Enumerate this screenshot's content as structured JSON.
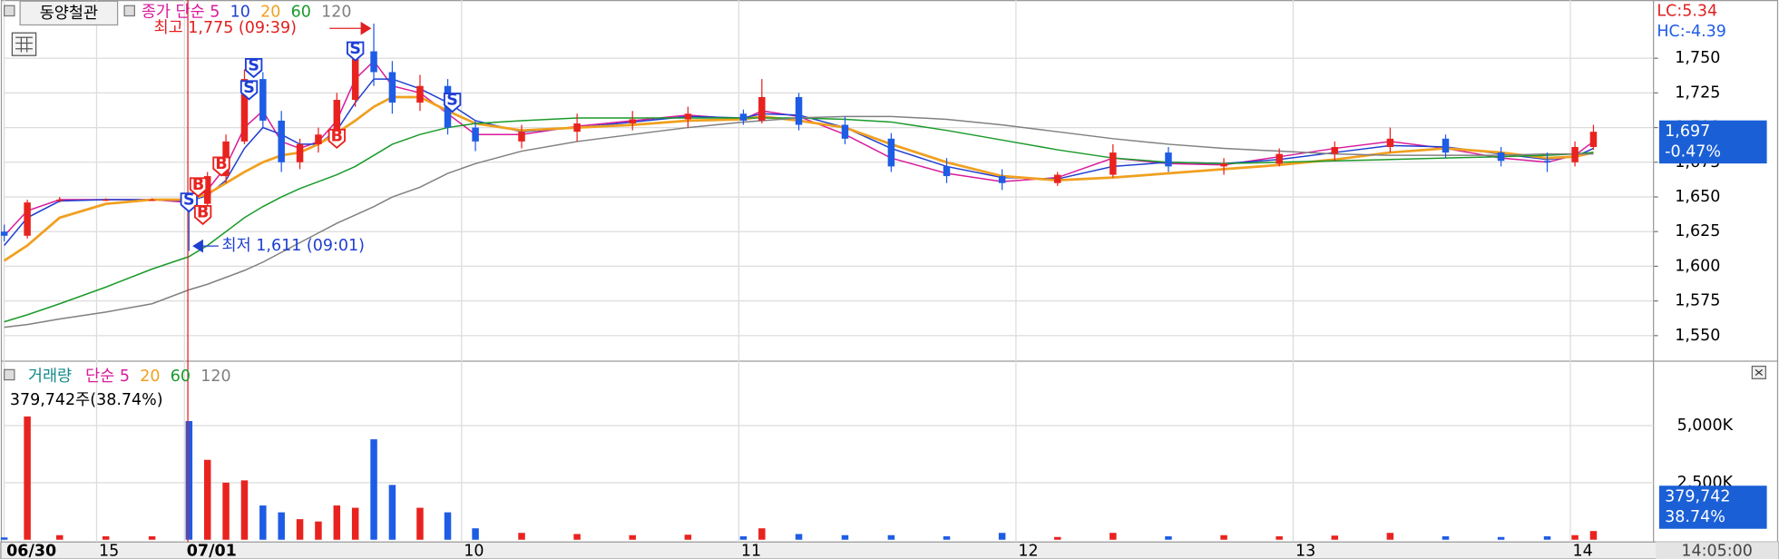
{
  "chart_data": {
    "type": "candlestick",
    "title": "동양철관",
    "x": [
      0,
      5,
      12,
      22,
      32,
      40,
      44,
      48,
      52,
      56,
      60,
      64,
      68,
      72,
      76,
      80,
      84,
      90,
      96,
      102,
      112,
      124,
      136,
      148,
      160,
      164,
      172,
      182,
      192,
      204,
      216,
      228,
      240,
      252,
      264,
      276,
      288,
      300,
      312,
      324,
      334,
      340,
      344
    ],
    "open": [
      1625,
      1622,
      1648,
      1648,
      1648,
      1648,
      1645,
      1665,
      1690,
      1735,
      1705,
      1675,
      1688,
      1695,
      1720,
      1755,
      1740,
      1718,
      1730,
      1700,
      1690,
      1697,
      1703,
      1706,
      1710,
      1705,
      1722,
      1702,
      1692,
      1672,
      1665,
      1660,
      1666,
      1682,
      1672,
      1674,
      1681,
      1686,
      1692,
      1682,
      1676,
      1675,
      1686
    ],
    "high": [
      1630,
      1648,
      1650,
      1649,
      1649,
      1652,
      1668,
      1695,
      1742,
      1740,
      1712,
      1692,
      1700,
      1725,
      1760,
      1775,
      1748,
      1738,
      1735,
      1705,
      1702,
      1710,
      1712,
      1715,
      1713,
      1735,
      1725,
      1708,
      1696,
      1678,
      1670,
      1668,
      1688,
      1686,
      1678,
      1685,
      1690,
      1700,
      1695,
      1686,
      1682,
      1690,
      1702
    ],
    "low": [
      1618,
      1620,
      1646,
      1647,
      1647,
      1611,
      1640,
      1660,
      1688,
      1700,
      1668,
      1670,
      1682,
      1690,
      1715,
      1730,
      1710,
      1712,
      1695,
      1683,
      1685,
      1690,
      1698,
      1700,
      1702,
      1703,
      1698,
      1688,
      1668,
      1660,
      1655,
      1658,
      1664,
      1668,
      1666,
      1672,
      1676,
      1682,
      1678,
      1672,
      1668,
      1672,
      1684
    ],
    "close": [
      1622,
      1646,
      1648,
      1648,
      1648,
      1645,
      1665,
      1690,
      1735,
      1705,
      1675,
      1688,
      1695,
      1720,
      1755,
      1740,
      1718,
      1730,
      1700,
      1690,
      1697,
      1703,
      1706,
      1710,
      1705,
      1722,
      1702,
      1692,
      1672,
      1665,
      1660,
      1666,
      1682,
      1672,
      1674,
      1681,
      1686,
      1692,
      1682,
      1676,
      1675,
      1686,
      1697
    ],
    "up_color": "#e8231f",
    "down_color": "#1e5ce6",
    "series": [
      {
        "name": "종가 단순 5",
        "color": "#d81b9c",
        "values": [
          1622,
          1640,
          1648,
          1648,
          1648,
          1646,
          1655,
          1672,
          1700,
          1712,
          1690,
          1685,
          1690,
          1705,
          1735,
          1748,
          1730,
          1725,
          1710,
          1695,
          1695,
          1701,
          1705,
          1709,
          1706,
          1712,
          1708,
          1695,
          1678,
          1667,
          1661,
          1664,
          1678,
          1674,
          1673,
          1679,
          1685,
          1690,
          1685,
          1678,
          1675,
          1680,
          1690
        ]
      },
      {
        "name": "10",
        "color": "#1f3fd0",
        "values": [
          1615,
          1635,
          1647,
          1648,
          1648,
          1647,
          1651,
          1662,
          1685,
          1700,
          1695,
          1688,
          1688,
          1698,
          1718,
          1735,
          1735,
          1728,
          1718,
          1705,
          1697,
          1700,
          1704,
          1708,
          1707,
          1710,
          1709,
          1700,
          1685,
          1672,
          1664,
          1663,
          1672,
          1675,
          1674,
          1677,
          1682,
          1687,
          1686,
          1681,
          1677,
          1679,
          1685
        ]
      },
      {
        "name": "20",
        "color": "#f0a020",
        "values": [
          1604,
          1615,
          1635,
          1645,
          1648,
          1648,
          1652,
          1660,
          1668,
          1675,
          1680,
          1682,
          1688,
          1696,
          1705,
          1715,
          1722,
          1722,
          1712,
          1703,
          1698,
          1700,
          1702,
          1705,
          1706,
          1708,
          1705,
          1700,
          1688,
          1675,
          1665,
          1662,
          1664,
          1667,
          1670,
          1673,
          1677,
          1682,
          1685,
          1682,
          1678,
          1679,
          1682
        ]
      },
      {
        "name": "60",
        "color": "#1a9a2a",
        "values": [
          1560,
          1565,
          1573,
          1585,
          1598,
          1607,
          1615,
          1625,
          1635,
          1643,
          1650,
          1656,
          1661,
          1666,
          1672,
          1680,
          1688,
          1695,
          1700,
          1703,
          1705,
          1707,
          1707,
          1707,
          1707,
          1707,
          1707,
          1706,
          1704,
          1698,
          1691,
          1684,
          1678,
          1675,
          1674,
          1675,
          1676,
          1677,
          1678,
          1679,
          1680,
          1681,
          1682
        ]
      },
      {
        "name": "120",
        "color": "#808080",
        "values": [
          1556,
          1558,
          1562,
          1567,
          1573,
          1583,
          1587,
          1592,
          1597,
          1603,
          1610,
          1617,
          1624,
          1631,
          1637,
          1643,
          1650,
          1657,
          1667,
          1674,
          1683,
          1690,
          1695,
          1700,
          1704,
          1705,
          1707,
          1708,
          1708,
          1706,
          1702,
          1697,
          1692,
          1688,
          1685,
          1683,
          1681,
          1680,
          1680,
          1680,
          1681,
          1681,
          1681
        ]
      }
    ],
    "xlim": [
      0,
      357
    ],
    "xticks": [
      {
        "value": 0,
        "label": "06/30"
      },
      {
        "value": 20,
        "label": "15"
      },
      {
        "value": 39,
        "label": "07/01"
      },
      {
        "value": 99,
        "label": "10"
      },
      {
        "value": 159,
        "label": "11"
      },
      {
        "value": 219,
        "label": "12"
      },
      {
        "value": 279,
        "label": "13"
      },
      {
        "value": 339,
        "label": "14"
      }
    ],
    "ylim": [
      1532,
      1792
    ],
    "yticks": [
      {
        "value": 1550,
        "label": "1,550"
      },
      {
        "value": 1575,
        "label": "1,575"
      },
      {
        "value": 1600,
        "label": "1,600"
      },
      {
        "value": 1625,
        "label": "1,625"
      },
      {
        "value": 1650,
        "label": "1,650"
      },
      {
        "value": 1675,
        "label": "1,675"
      },
      {
        "value": 1700,
        "label": "1,700"
      },
      {
        "value": 1725,
        "label": "1,725"
      },
      {
        "value": 1750,
        "label": "1,750"
      }
    ],
    "grid": true,
    "current": {
      "value": 1697,
      "label": "1,697"
    },
    "current_change": "-0.47%",
    "lc": "LC:5.34",
    "hc": "HC:-4.39",
    "high_note": "최고 1,775 (09:39)",
    "low_note": "최저 1,611 (09:01)",
    "signals": [
      {
        "x": 40,
        "price": 1646,
        "label": "S"
      },
      {
        "x": 43,
        "price": 1637,
        "label": "B"
      },
      {
        "x": 42,
        "price": 1657,
        "label": "B"
      },
      {
        "x": 47,
        "price": 1672,
        "label": "B"
      },
      {
        "x": 53,
        "price": 1727,
        "label": "S"
      },
      {
        "x": 54,
        "price": 1743,
        "label": "S"
      },
      {
        "x": 72,
        "price": 1692,
        "label": "B"
      },
      {
        "x": 76,
        "price": 1755,
        "label": "S"
      },
      {
        "x": 97,
        "price": 1718,
        "label": "S"
      }
    ],
    "time": "14:05:00",
    "volume": {
      "title": "거래량",
      "legend": [
        {
          "label": "단순 5",
          "color": "#d81b9c"
        },
        {
          "label": "20",
          "color": "#f0a020"
        },
        {
          "label": "60",
          "color": "#1a9a2a"
        },
        {
          "label": "120",
          "color": "#808080"
        }
      ],
      "info": "379,742주(38.74%)",
      "values": [
        100,
        5400,
        200,
        150,
        150,
        5200,
        3500,
        2500,
        2600,
        1500,
        1200,
        900,
        800,
        1500,
        1400,
        4400,
        2400,
        1400,
        1200,
        500,
        300,
        250,
        200,
        220,
        150,
        500,
        250,
        200,
        200,
        150,
        300,
        120,
        300,
        150,
        200,
        150,
        180,
        300,
        150,
        120,
        150,
        200,
        379.742
      ],
      "ylim": [
        0,
        7750
      ],
      "yticks": [
        {
          "value": 2500,
          "label": "2,500K"
        },
        {
          "value": 5000,
          "label": "5,000K"
        }
      ],
      "current": {
        "value": 379.742,
        "label": "379,742"
      },
      "current_pct": "38.74%"
    }
  }
}
